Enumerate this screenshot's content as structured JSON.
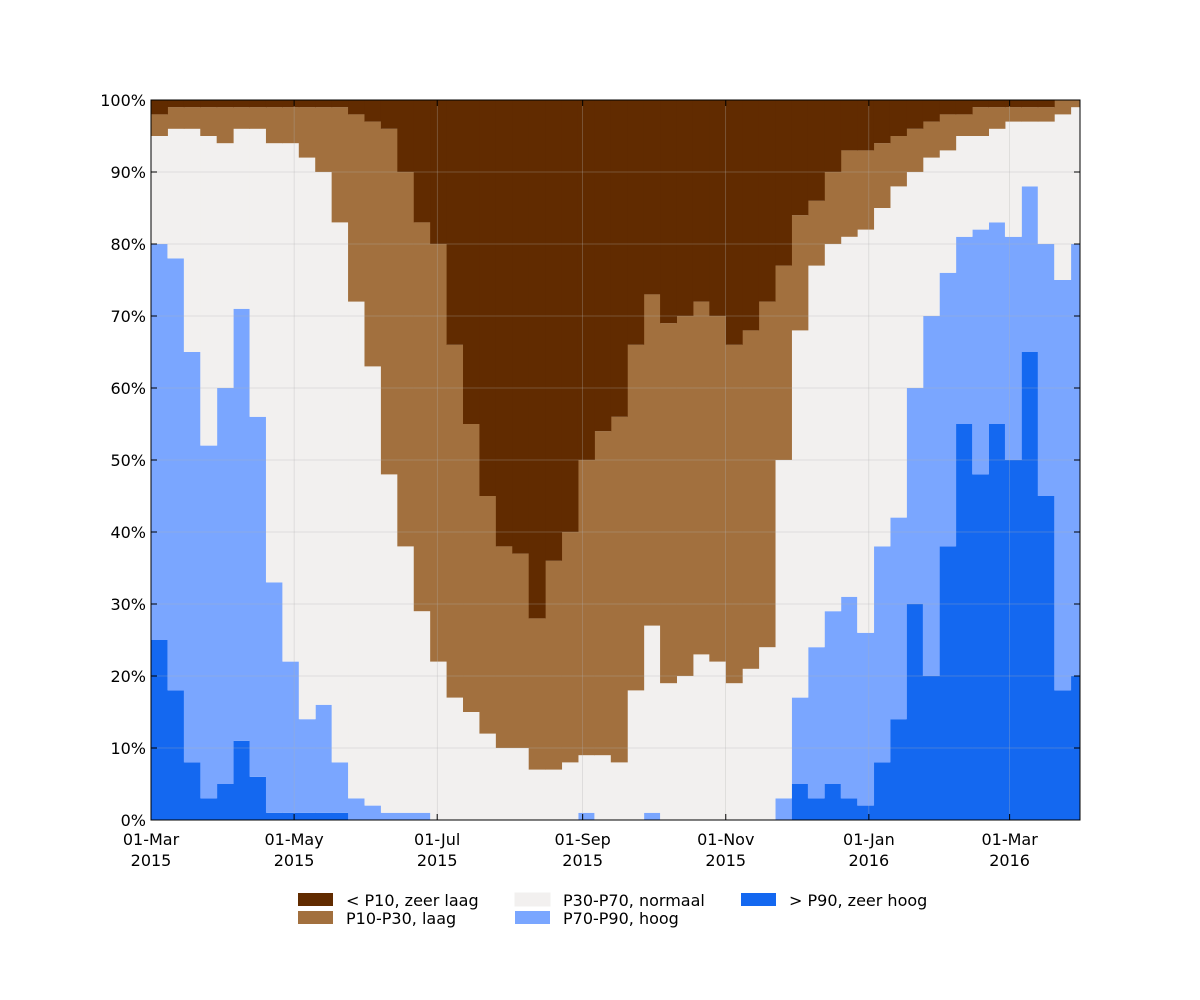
{
  "chart_data": {
    "type": "stacked-step-area",
    "x": [
      "2015-03-01",
      "2015-03-08",
      "2015-03-15",
      "2015-03-22",
      "2015-03-29",
      "2015-04-05",
      "2015-04-12",
      "2015-04-19",
      "2015-04-26",
      "2015-05-03",
      "2015-05-10",
      "2015-05-17",
      "2015-05-24",
      "2015-05-31",
      "2015-06-07",
      "2015-06-14",
      "2015-06-21",
      "2015-06-28",
      "2015-07-05",
      "2015-07-12",
      "2015-07-19",
      "2015-07-26",
      "2015-08-02",
      "2015-08-09",
      "2015-08-16",
      "2015-08-23",
      "2015-08-30",
      "2015-09-06",
      "2015-09-13",
      "2015-09-20",
      "2015-09-27",
      "2015-10-04",
      "2015-10-11",
      "2015-10-18",
      "2015-10-25",
      "2015-11-01",
      "2015-11-08",
      "2015-11-15",
      "2015-11-22",
      "2015-11-29",
      "2015-12-06",
      "2015-12-13",
      "2015-12-20",
      "2015-12-27",
      "2016-01-03",
      "2016-01-10",
      "2016-01-17",
      "2016-01-24",
      "2016-01-31",
      "2016-02-07",
      "2016-02-14",
      "2016-02-21",
      "2016-02-28",
      "2016-03-06",
      "2016-03-13",
      "2016-03-20",
      "2016-03-27"
    ],
    "series": [
      {
        "name": "< P10, zeer laag",
        "color": "#612b00",
        "values": [
          2,
          1,
          1,
          1,
          1,
          1,
          1,
          1,
          1,
          1,
          1,
          1,
          2,
          3,
          4,
          10,
          17,
          20,
          34,
          45,
          55,
          62,
          63,
          72,
          64,
          60,
          50,
          46,
          44,
          34,
          27,
          31,
          30,
          28,
          30,
          34,
          32,
          28,
          23,
          16,
          14,
          10,
          7,
          7,
          6,
          5,
          4,
          3,
          2,
          2,
          1,
          1,
          1,
          1,
          1,
          0,
          0
        ]
      },
      {
        "name": "P10-P30, laag",
        "color": "#a2703e",
        "values": [
          3,
          3,
          3,
          4,
          5,
          3,
          3,
          5,
          5,
          7,
          9,
          16,
          26,
          34,
          48,
          52,
          54,
          58,
          49,
          40,
          33,
          28,
          27,
          21,
          29,
          32,
          41,
          45,
          48,
          48,
          46,
          50,
          50,
          49,
          48,
          47,
          47,
          48,
          27,
          16,
          9,
          10,
          12,
          11,
          9,
          7,
          6,
          5,
          5,
          3,
          4,
          3,
          2,
          2,
          2,
          2,
          1
        ]
      },
      {
        "name": "P30-P70, normaal",
        "color": "#f2f0ef",
        "values": [
          15,
          18,
          31,
          43,
          34,
          25,
          40,
          61,
          72,
          78,
          74,
          75,
          69,
          61,
          47,
          37,
          28,
          22,
          17,
          15,
          12,
          10,
          10,
          7,
          7,
          8,
          8,
          9,
          8,
          18,
          26,
          19,
          20,
          23,
          22,
          19,
          21,
          24,
          47,
          51,
          53,
          51,
          50,
          56,
          47,
          46,
          30,
          22,
          17,
          14,
          13,
          13,
          16,
          9,
          17,
          23,
          19
        ]
      },
      {
        "name": "P70-P90, hoog",
        "color": "#7aa6ff",
        "values": [
          55,
          60,
          57,
          49,
          55,
          60,
          50,
          32,
          21,
          13,
          15,
          7,
          3,
          2,
          1,
          1,
          1,
          0,
          0,
          0,
          0,
          0,
          0,
          0,
          0,
          0,
          1,
          0,
          0,
          0,
          1,
          0,
          0,
          0,
          0,
          0,
          0,
          0,
          3,
          12,
          21,
          24,
          28,
          24,
          30,
          28,
          30,
          50,
          38,
          26,
          34,
          28,
          31,
          23,
          35,
          57,
          60
        ]
      },
      {
        "name": "> P90, zeer hoog",
        "color": "#1468f0",
        "values": [
          25,
          18,
          8,
          3,
          5,
          11,
          6,
          1,
          1,
          1,
          1,
          1,
          0,
          0,
          0,
          0,
          0,
          0,
          0,
          0,
          0,
          0,
          0,
          0,
          0,
          0,
          0,
          0,
          0,
          0,
          0,
          0,
          0,
          0,
          0,
          0,
          0,
          0,
          0,
          5,
          3,
          5,
          3,
          2,
          8,
          14,
          30,
          20,
          38,
          55,
          48,
          55,
          50,
          65,
          45,
          18,
          20
        ]
      }
    ],
    "xlim": [
      "2015-03-01",
      "2016-03-31"
    ],
    "xticks": [
      {
        "value": "2015-03-01",
        "label": "01-Mar 2015"
      },
      {
        "value": "2015-05-01",
        "label": "01-May 2015"
      },
      {
        "value": "2015-07-01",
        "label": "01-Jul 2015"
      },
      {
        "value": "2015-09-01",
        "label": "01-Sep 2015"
      },
      {
        "value": "2015-11-01",
        "label": "01-Nov 2015"
      },
      {
        "value": "2016-01-01",
        "label": "01-Jan 2016"
      },
      {
        "value": "2016-03-01",
        "label": "01-Mar 2016"
      }
    ],
    "ylim": [
      0,
      100
    ],
    "yticks": [
      {
        "value": 0,
        "label": "0%"
      },
      {
        "value": 10,
        "label": "10%"
      },
      {
        "value": 20,
        "label": "20%"
      },
      {
        "value": 30,
        "label": "30%"
      },
      {
        "value": 40,
        "label": "40%"
      },
      {
        "value": 50,
        "label": "50%"
      },
      {
        "value": 60,
        "label": "60%"
      },
      {
        "value": 70,
        "label": "70%"
      },
      {
        "value": 80,
        "label": "80%"
      },
      {
        "value": 90,
        "label": "90%"
      },
      {
        "value": 100,
        "label": "100%"
      }
    ],
    "grid": true,
    "legend": "bottom"
  }
}
